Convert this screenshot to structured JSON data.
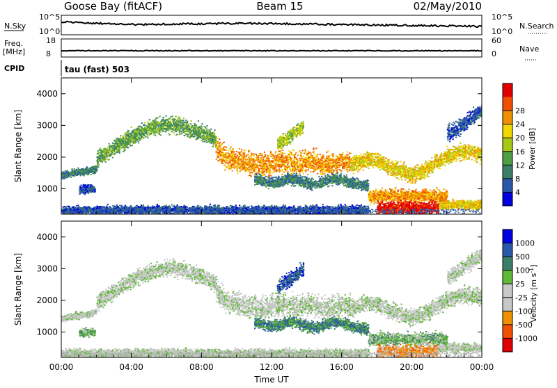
{
  "header": {
    "station": "Goose Bay (fitACF)",
    "beam": "Beam 15",
    "date": "02/May/2010"
  },
  "summary": {
    "nsky_label": "N.Sky",
    "nsky_ticks": [
      "10^5",
      "10^0"
    ],
    "nsearch_label": "N.Search",
    "freq_label_1": "Freq.",
    "freq_label_2": "[MHz]",
    "freq_ticks": [
      "18",
      "8"
    ],
    "nave_label": "Nave",
    "nave_ticks": [
      "60",
      "0"
    ],
    "cpid_label": "CPID",
    "cpid_value": "tau (fast) 503"
  },
  "colors": {
    "power": [
      "#0000e0",
      "#2a58a8",
      "#3c7e6a",
      "#4e9e44",
      "#a8c818",
      "#f0d800",
      "#f09000",
      "#f05000",
      "#e00000"
    ],
    "velocity": [
      "#e00000",
      "#f05000",
      "#f09000",
      "#c8c8c8",
      "#c8c8c8",
      "#60b838",
      "#3c7e6a",
      "#2a58a8",
      "#0000e0"
    ]
  },
  "chart_data": [
    {
      "type": "heatmap",
      "panel": "power",
      "ylabel": "Slant Range [km]",
      "xlabel": "",
      "xlim": [
        0,
        24
      ],
      "ylim": [
        200,
        4500
      ],
      "yticks": [
        1000,
        2000,
        3000,
        4000
      ],
      "colorbar_label": "Power [dB]",
      "colorbar_ticks": [
        "4",
        "8",
        "12",
        "16",
        "20",
        "24",
        "28"
      ],
      "bands": [
        {
          "x": [
            0.0,
            0.5,
            1.0,
            1.5,
            2.0
          ],
          "y": [
            1450,
            1500,
            1550,
            1580,
            1650
          ],
          "width": 130,
          "level": 2
        },
        {
          "x": [
            2.0,
            2.6,
            3.2,
            3.8,
            4.3,
            4.8,
            5.3,
            5.8,
            6.3,
            6.8,
            7.3,
            7.8,
            8.3,
            8.8
          ],
          "y": [
            1950,
            2150,
            2380,
            2580,
            2750,
            2880,
            2960,
            3020,
            3040,
            3000,
            2900,
            2820,
            2700,
            2550
          ],
          "width": 300,
          "level": 3
        },
        {
          "x": [
            8.8,
            9.2,
            9.6,
            10.0,
            10.5,
            11.0,
            11.5,
            12.0,
            12.5,
            13.0,
            13.5,
            14.0,
            14.5,
            15.0,
            15.5,
            16.0,
            16.5
          ],
          "y": [
            2300,
            2050,
            1950,
            1900,
            1850,
            1800,
            1750,
            1850,
            1900,
            1850,
            1800,
            1900,
            1850,
            1750,
            1800,
            1900,
            1850
          ],
          "width": 420,
          "level": 6
        },
        {
          "x": [
            16.5,
            17.0,
            17.5,
            18.0,
            18.5,
            19.0,
            19.5,
            20.0,
            20.5,
            21.0,
            21.5,
            22.0,
            22.5,
            23.0,
            23.5,
            24.0
          ],
          "y": [
            1800,
            1850,
            1950,
            1900,
            1750,
            1650,
            1550,
            1480,
            1550,
            1700,
            1900,
            2050,
            2150,
            2200,
            2150,
            2100
          ],
          "width": 300,
          "level": 5
        },
        {
          "x": [
            11.0,
            11.5,
            12.0,
            12.5,
            13.0,
            13.5,
            14.0,
            14.5,
            15.0,
            15.5,
            16.0,
            16.5,
            17.0,
            17.5
          ],
          "y": [
            1300,
            1250,
            1200,
            1250,
            1350,
            1300,
            1200,
            1150,
            1250,
            1350,
            1300,
            1200,
            1150,
            1100
          ],
          "width": 200,
          "level": 2
        },
        {
          "x": [
            17.5,
            18.0,
            18.5,
            19.0,
            19.5,
            20.0,
            20.5,
            21.0,
            21.5,
            22.0
          ],
          "y": [
            780,
            790,
            800,
            810,
            800,
            790,
            800,
            810,
            790,
            780
          ],
          "width": 240,
          "level": 6
        },
        {
          "x": [
            18.0,
            18.5,
            19.0,
            19.5,
            20.0,
            20.5,
            21.0,
            21.5
          ],
          "y": [
            430,
            420,
            410,
            400,
            410,
            420,
            430,
            420
          ],
          "width": 240,
          "level": 8
        },
        {
          "x": [
            21.5,
            22.0,
            22.5,
            23.0,
            23.5,
            24.0
          ],
          "y": [
            500,
            520,
            530,
            520,
            520,
            510
          ],
          "width": 160,
          "level": 5
        },
        {
          "x": [
            0.0,
            2.0,
            4.0,
            6.0,
            8.0,
            10.0,
            12.0,
            14.0,
            16.0,
            17.5
          ],
          "y": [
            330,
            340,
            350,
            360,
            350,
            340,
            350,
            340,
            360,
            350
          ],
          "width": 160,
          "level": 1
        },
        {
          "x": [
            1.0,
            1.3,
            1.6,
            1.9
          ],
          "y": [
            980,
            1000,
            1020,
            1000
          ],
          "width": 160,
          "level": 1
        },
        {
          "x": [
            22.0,
            22.5,
            23.0,
            23.5,
            24.0
          ],
          "y": [
            2750,
            2900,
            3100,
            3300,
            3500
          ],
          "width": 280,
          "level": 1
        },
        {
          "x": [
            12.3,
            12.8,
            13.3,
            13.8
          ],
          "y": [
            2400,
            2600,
            2800,
            3000
          ],
          "width": 260,
          "level": 4
        }
      ]
    },
    {
      "type": "heatmap",
      "panel": "velocity",
      "ylabel": "Slant Range [km]",
      "xlabel": "Time UT",
      "xlim": [
        0,
        24
      ],
      "ylim": [
        200,
        4500
      ],
      "yticks": [
        1000,
        2000,
        3000,
        4000
      ],
      "xticks": [
        "00:00",
        "04:00",
        "08:00",
        "12:00",
        "16:00",
        "20:00",
        "00:00"
      ],
      "colorbar_label": "Velocity [m s-1]",
      "colorbar_ticks": [
        "-1000",
        "-500",
        "-100",
        "-25",
        "25",
        "100",
        "500",
        "1000"
      ],
      "bands": [
        {
          "x": [
            0.0,
            0.5,
            1.0,
            1.5,
            2.0
          ],
          "y": [
            1450,
            1500,
            1550,
            1580,
            1650
          ],
          "width": 130,
          "level": 4
        },
        {
          "x": [
            2.0,
            2.6,
            3.2,
            3.8,
            4.3,
            4.8,
            5.3,
            5.8,
            6.3,
            6.8,
            7.3,
            7.8,
            8.3,
            8.8
          ],
          "y": [
            1950,
            2150,
            2380,
            2580,
            2750,
            2880,
            2960,
            3020,
            3040,
            3000,
            2900,
            2820,
            2700,
            2550
          ],
          "width": 300,
          "level": 4
        },
        {
          "x": [
            8.8,
            9.2,
            9.6,
            10.0,
            10.5,
            11.0,
            11.5,
            12.0,
            12.5,
            13.0,
            13.5,
            14.0,
            14.5,
            15.0,
            15.5,
            16.0,
            16.5
          ],
          "y": [
            2300,
            2050,
            1950,
            1900,
            1850,
            1800,
            1750,
            1850,
            1900,
            1850,
            1800,
            1900,
            1850,
            1750,
            1800,
            1900,
            1850
          ],
          "width": 420,
          "level": 4
        },
        {
          "x": [
            16.5,
            17.0,
            17.5,
            18.0,
            18.5,
            19.0,
            19.5,
            20.0,
            20.5,
            21.0,
            21.5,
            22.0,
            22.5,
            23.0,
            23.5,
            24.0
          ],
          "y": [
            1800,
            1850,
            1950,
            1900,
            1750,
            1650,
            1550,
            1480,
            1550,
            1700,
            1900,
            2050,
            2150,
            2200,
            2150,
            2100
          ],
          "width": 300,
          "level": 4
        },
        {
          "x": [
            11.0,
            11.5,
            12.0,
            12.5,
            13.0,
            13.5,
            14.0,
            14.5,
            15.0,
            15.5,
            16.0,
            16.5,
            17.0,
            17.5
          ],
          "y": [
            1300,
            1250,
            1200,
            1250,
            1350,
            1300,
            1200,
            1150,
            1250,
            1350,
            1300,
            1200,
            1150,
            1100
          ],
          "width": 200,
          "level": 6
        },
        {
          "x": [
            17.5,
            18.0,
            18.5,
            19.0,
            19.5,
            20.0,
            20.5,
            21.0,
            21.5,
            22.0
          ],
          "y": [
            780,
            790,
            800,
            810,
            800,
            790,
            800,
            810,
            790,
            780
          ],
          "width": 240,
          "level": 5
        },
        {
          "x": [
            18.0,
            18.5,
            19.0,
            19.5,
            20.0,
            20.5,
            21.0,
            21.5
          ],
          "y": [
            430,
            420,
            410,
            400,
            410,
            420,
            430,
            420
          ],
          "width": 240,
          "level": 2
        },
        {
          "x": [
            21.5,
            22.0,
            22.5,
            23.0,
            23.5,
            24.0
          ],
          "y": [
            500,
            520,
            530,
            520,
            520,
            510
          ],
          "width": 160,
          "level": 4
        },
        {
          "x": [
            0.0,
            2.0,
            4.0,
            6.0,
            8.0,
            10.0,
            12.0,
            14.0,
            16.0,
            17.5
          ],
          "y": [
            330,
            340,
            350,
            360,
            350,
            340,
            350,
            340,
            360,
            350
          ],
          "width": 160,
          "level": 4
        },
        {
          "x": [
            1.0,
            1.3,
            1.6,
            1.9
          ],
          "y": [
            980,
            1000,
            1020,
            1000
          ],
          "width": 160,
          "level": 5
        },
        {
          "x": [
            22.0,
            22.5,
            23.0,
            23.5,
            24.0
          ],
          "y": [
            2750,
            2900,
            3100,
            3300,
            3500
          ],
          "width": 280,
          "level": 4
        },
        {
          "x": [
            12.3,
            12.8,
            13.3,
            13.8
          ],
          "y": [
            2400,
            2600,
            2800,
            3000
          ],
          "width": 260,
          "level": 7
        }
      ]
    }
  ]
}
